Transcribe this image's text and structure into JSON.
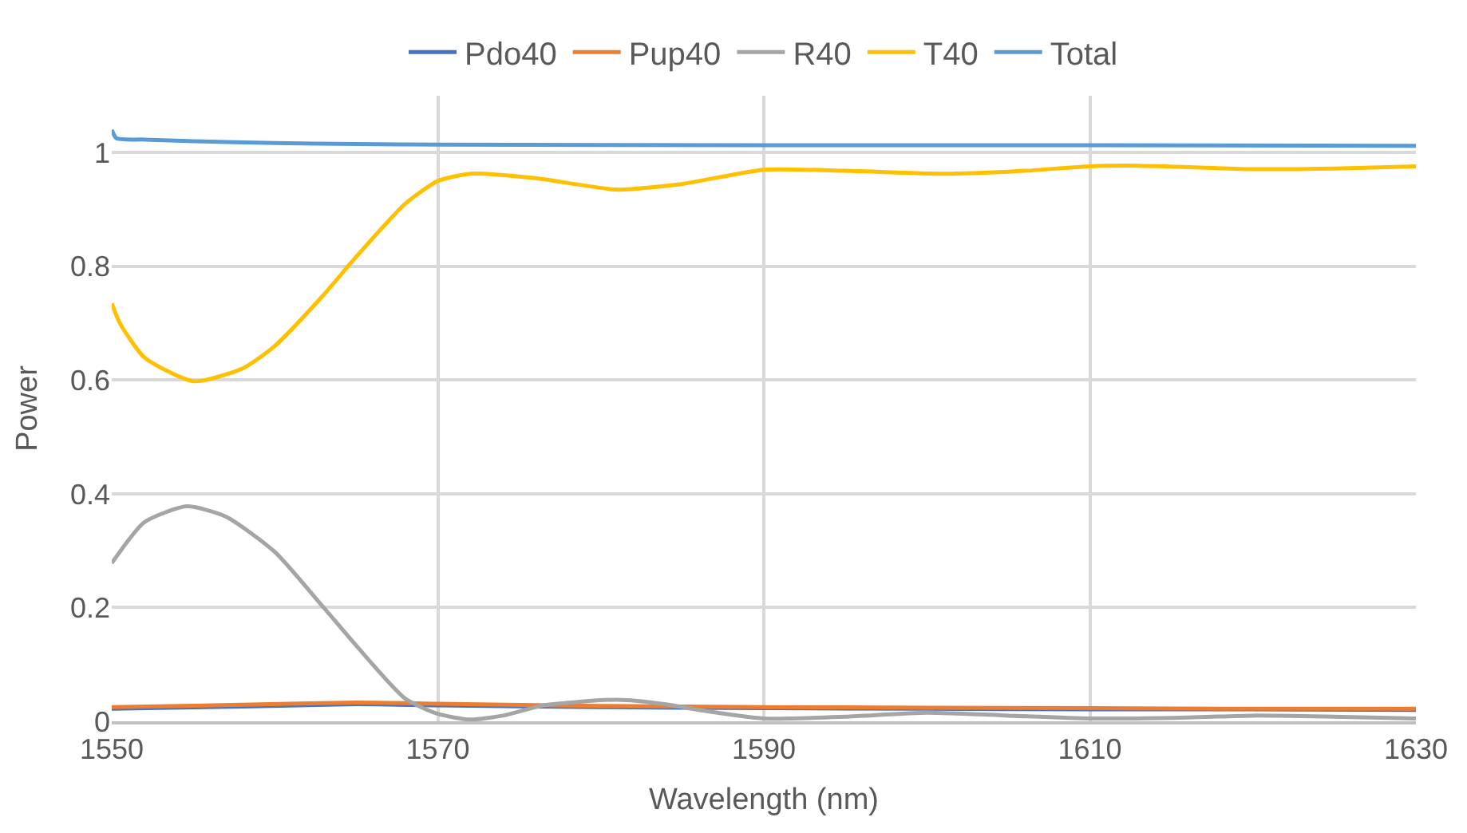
{
  "chart_data": {
    "type": "line",
    "xlabel": "Wavelength (nm)",
    "ylabel": "Power",
    "xlim": [
      1550,
      1630
    ],
    "xticks": [
      1550,
      1570,
      1590,
      1610,
      1630
    ],
    "ylim": [
      0,
      1.1
    ],
    "yticks": [
      0,
      0.2,
      0.4,
      0.6,
      0.8,
      1
    ],
    "grid": true,
    "legend": "top",
    "marker": "none",
    "line_style": "solid",
    "series": [
      {
        "name": "Pdo40",
        "color": "#4472c4",
        "x": [
          1550,
          1558,
          1565,
          1570,
          1580,
          1590,
          1600,
          1610,
          1620,
          1630
        ],
        "values": [
          0.022,
          0.026,
          0.03,
          0.028,
          0.025,
          0.023,
          0.022,
          0.021,
          0.021,
          0.02
        ]
      },
      {
        "name": "Pup40",
        "color": "#ed7d31",
        "x": [
          1550,
          1558,
          1565,
          1570,
          1580,
          1590,
          1600,
          1610,
          1620,
          1630
        ],
        "values": [
          0.025,
          0.029,
          0.033,
          0.031,
          0.027,
          0.025,
          0.024,
          0.023,
          0.022,
          0.022
        ]
      },
      {
        "name": "R40",
        "color": "#a5a5a5",
        "x": [
          1550,
          1552,
          1554.6,
          1557,
          1560,
          1563,
          1565,
          1568,
          1570,
          1572,
          1574,
          1576.5,
          1581,
          1584,
          1586,
          1590,
          1595,
          1600,
          1605,
          1610,
          1615,
          1620,
          1625,
          1630
        ],
        "values": [
          0.278,
          0.35,
          0.378,
          0.36,
          0.298,
          0.2,
          0.133,
          0.04,
          0.013,
          0.003,
          0.01,
          0.028,
          0.038,
          0.03,
          0.02,
          0.005,
          0.008,
          0.015,
          0.01,
          0.005,
          0.006,
          0.01,
          0.008,
          0.005
        ]
      },
      {
        "name": "T40",
        "color": "#ffc000",
        "x": [
          1550,
          1550.5,
          1552,
          1555,
          1558,
          1560,
          1563,
          1565,
          1568,
          1570,
          1572,
          1576,
          1581,
          1585,
          1590,
          1595,
          1601,
          1606,
          1610,
          1613,
          1620,
          1625,
          1630
        ],
        "values": [
          0.735,
          0.7,
          0.64,
          0.598,
          0.62,
          0.66,
          0.75,
          0.817,
          0.91,
          0.95,
          0.963,
          0.955,
          0.935,
          0.945,
          0.97,
          0.968,
          0.963,
          0.968,
          0.976,
          0.977,
          0.971,
          0.972,
          0.976
        ]
      },
      {
        "name": "Total",
        "color": "#5b9bd5",
        "x": [
          1550,
          1550.3,
          1552,
          1555,
          1560,
          1565,
          1570,
          1590,
          1610,
          1630
        ],
        "values": [
          1.04,
          1.025,
          1.023,
          1.02,
          1.017,
          1.015,
          1.014,
          1.013,
          1.013,
          1.012
        ]
      }
    ]
  }
}
